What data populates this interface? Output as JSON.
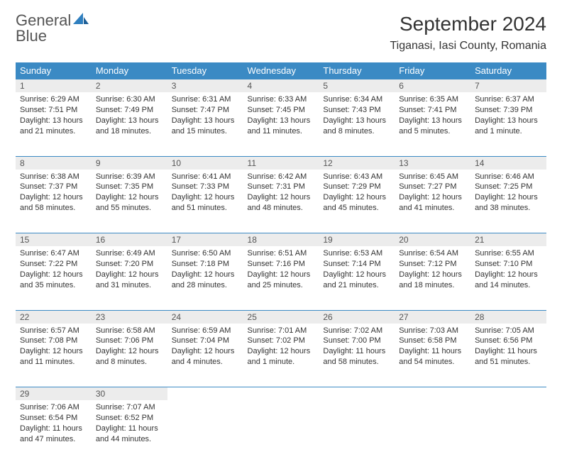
{
  "brand": {
    "word1": "General",
    "word2": "Blue"
  },
  "title": "September 2024",
  "location": "Tiganasi, Iasi County, Romania",
  "colors": {
    "header_bg": "#3b8ac4",
    "header_fg": "#ffffff",
    "daynum_bg": "#ececec",
    "text": "#333333",
    "rule": "#3b8ac4",
    "page_bg": "#ffffff"
  },
  "typography": {
    "title_fontsize": 28,
    "location_fontsize": 16,
    "dow_fontsize": 13,
    "cell_fontsize": 11
  },
  "days_of_week": [
    "Sunday",
    "Monday",
    "Tuesday",
    "Wednesday",
    "Thursday",
    "Friday",
    "Saturday"
  ],
  "weeks": [
    [
      {
        "n": "1",
        "sunrise": "6:29 AM",
        "sunset": "7:51 PM",
        "daylight": "13 hours and 21 minutes."
      },
      {
        "n": "2",
        "sunrise": "6:30 AM",
        "sunset": "7:49 PM",
        "daylight": "13 hours and 18 minutes."
      },
      {
        "n": "3",
        "sunrise": "6:31 AM",
        "sunset": "7:47 PM",
        "daylight": "13 hours and 15 minutes."
      },
      {
        "n": "4",
        "sunrise": "6:33 AM",
        "sunset": "7:45 PM",
        "daylight": "13 hours and 11 minutes."
      },
      {
        "n": "5",
        "sunrise": "6:34 AM",
        "sunset": "7:43 PM",
        "daylight": "13 hours and 8 minutes."
      },
      {
        "n": "6",
        "sunrise": "6:35 AM",
        "sunset": "7:41 PM",
        "daylight": "13 hours and 5 minutes."
      },
      {
        "n": "7",
        "sunrise": "6:37 AM",
        "sunset": "7:39 PM",
        "daylight": "13 hours and 1 minute."
      }
    ],
    [
      {
        "n": "8",
        "sunrise": "6:38 AM",
        "sunset": "7:37 PM",
        "daylight": "12 hours and 58 minutes."
      },
      {
        "n": "9",
        "sunrise": "6:39 AM",
        "sunset": "7:35 PM",
        "daylight": "12 hours and 55 minutes."
      },
      {
        "n": "10",
        "sunrise": "6:41 AM",
        "sunset": "7:33 PM",
        "daylight": "12 hours and 51 minutes."
      },
      {
        "n": "11",
        "sunrise": "6:42 AM",
        "sunset": "7:31 PM",
        "daylight": "12 hours and 48 minutes."
      },
      {
        "n": "12",
        "sunrise": "6:43 AM",
        "sunset": "7:29 PM",
        "daylight": "12 hours and 45 minutes."
      },
      {
        "n": "13",
        "sunrise": "6:45 AM",
        "sunset": "7:27 PM",
        "daylight": "12 hours and 41 minutes."
      },
      {
        "n": "14",
        "sunrise": "6:46 AM",
        "sunset": "7:25 PM",
        "daylight": "12 hours and 38 minutes."
      }
    ],
    [
      {
        "n": "15",
        "sunrise": "6:47 AM",
        "sunset": "7:22 PM",
        "daylight": "12 hours and 35 minutes."
      },
      {
        "n": "16",
        "sunrise": "6:49 AM",
        "sunset": "7:20 PM",
        "daylight": "12 hours and 31 minutes."
      },
      {
        "n": "17",
        "sunrise": "6:50 AM",
        "sunset": "7:18 PM",
        "daylight": "12 hours and 28 minutes."
      },
      {
        "n": "18",
        "sunrise": "6:51 AM",
        "sunset": "7:16 PM",
        "daylight": "12 hours and 25 minutes."
      },
      {
        "n": "19",
        "sunrise": "6:53 AM",
        "sunset": "7:14 PM",
        "daylight": "12 hours and 21 minutes."
      },
      {
        "n": "20",
        "sunrise": "6:54 AM",
        "sunset": "7:12 PM",
        "daylight": "12 hours and 18 minutes."
      },
      {
        "n": "21",
        "sunrise": "6:55 AM",
        "sunset": "7:10 PM",
        "daylight": "12 hours and 14 minutes."
      }
    ],
    [
      {
        "n": "22",
        "sunrise": "6:57 AM",
        "sunset": "7:08 PM",
        "daylight": "12 hours and 11 minutes."
      },
      {
        "n": "23",
        "sunrise": "6:58 AM",
        "sunset": "7:06 PM",
        "daylight": "12 hours and 8 minutes."
      },
      {
        "n": "24",
        "sunrise": "6:59 AM",
        "sunset": "7:04 PM",
        "daylight": "12 hours and 4 minutes."
      },
      {
        "n": "25",
        "sunrise": "7:01 AM",
        "sunset": "7:02 PM",
        "daylight": "12 hours and 1 minute."
      },
      {
        "n": "26",
        "sunrise": "7:02 AM",
        "sunset": "7:00 PM",
        "daylight": "11 hours and 58 minutes."
      },
      {
        "n": "27",
        "sunrise": "7:03 AM",
        "sunset": "6:58 PM",
        "daylight": "11 hours and 54 minutes."
      },
      {
        "n": "28",
        "sunrise": "7:05 AM",
        "sunset": "6:56 PM",
        "daylight": "11 hours and 51 minutes."
      }
    ],
    [
      {
        "n": "29",
        "sunrise": "7:06 AM",
        "sunset": "6:54 PM",
        "daylight": "11 hours and 47 minutes."
      },
      {
        "n": "30",
        "sunrise": "7:07 AM",
        "sunset": "6:52 PM",
        "daylight": "11 hours and 44 minutes."
      },
      null,
      null,
      null,
      null,
      null
    ]
  ],
  "labels": {
    "sunrise": "Sunrise: ",
    "sunset": "Sunset: ",
    "daylight": "Daylight: "
  }
}
